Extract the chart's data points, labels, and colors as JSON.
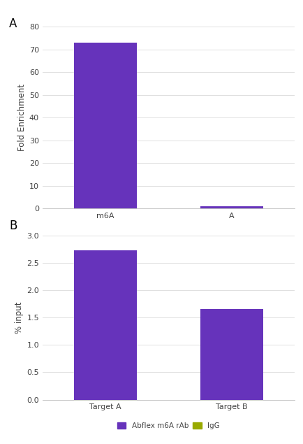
{
  "chart_A": {
    "categories": [
      "m6A",
      "A"
    ],
    "values": [
      73,
      1.0
    ],
    "bar_color": "#6633BB",
    "ylabel": "Fold Enrichment",
    "ylim": [
      0,
      80
    ],
    "yticks": [
      0,
      10,
      20,
      30,
      40,
      50,
      60,
      70,
      80
    ],
    "label": "A"
  },
  "chart_B": {
    "categories": [
      "Target A",
      "Target B"
    ],
    "values": [
      2.72,
      1.65
    ],
    "bar_color": "#6633BB",
    "ylabel": "% input",
    "ylim": [
      0,
      3
    ],
    "yticks": [
      0,
      0.5,
      1.0,
      1.5,
      2.0,
      2.5,
      3.0
    ],
    "label": "B",
    "legend_entries": [
      "Abflex m6A rAb",
      "IgG"
    ],
    "legend_colors": [
      "#6633BB",
      "#99AA00"
    ]
  },
  "background_color": "#ffffff",
  "plot_bg_color": "#ffffff",
  "grid_color": "#e0e0e0",
  "font_color": "#444444",
  "tick_fontsize": 8,
  "label_fontsize": 8.5,
  "bar_width": 0.25
}
